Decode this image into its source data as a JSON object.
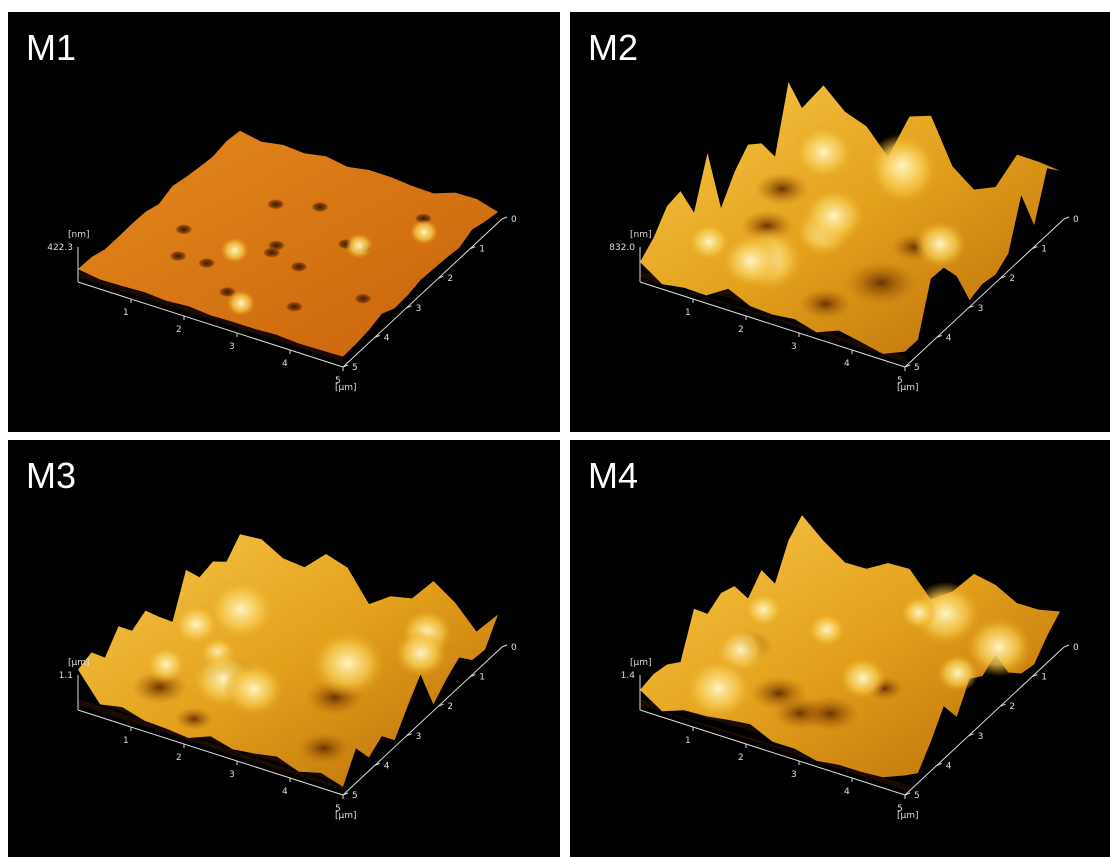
{
  "panels": [
    {
      "label": "M1",
      "z_unit": "[nm]",
      "z_max": "422.3",
      "x_ticks": [
        "1",
        "2",
        "3",
        "4",
        "5"
      ],
      "y_ticks": [
        "0",
        "1",
        "2",
        "3",
        "4",
        "5"
      ],
      "xy_unit": "[μm]"
    },
    {
      "label": "M2",
      "z_unit": "[nm]",
      "z_max": "832.0",
      "x_ticks": [
        "1",
        "2",
        "3",
        "4",
        "5"
      ],
      "y_ticks": [
        "0",
        "1",
        "2",
        "3",
        "4",
        "5"
      ],
      "xy_unit": "[μm]"
    },
    {
      "label": "M3",
      "z_unit": "[μm]",
      "z_max": "1.1",
      "x_ticks": [
        "1",
        "2",
        "3",
        "4",
        "5"
      ],
      "y_ticks": [
        "0",
        "1",
        "2",
        "3",
        "4",
        "5"
      ],
      "xy_unit": "[μm]"
    },
    {
      "label": "M4",
      "z_unit": "[μm]",
      "z_max": "1.4",
      "x_ticks": [
        "1",
        "2",
        "3",
        "4",
        "5"
      ],
      "y_ticks": [
        "0",
        "1",
        "2",
        "3",
        "4",
        "5"
      ],
      "xy_unit": "[μm]"
    }
  ]
}
